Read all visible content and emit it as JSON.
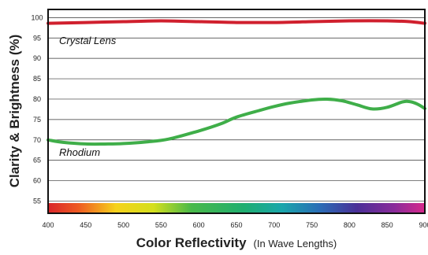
{
  "chart_data": {
    "type": "line",
    "title": "",
    "xlabel": "Color Reflectivity",
    "xlabel_note": "(In Wave Lengths)",
    "ylabel": "Clarity & Brightness (%)",
    "xlim": [
      400,
      900
    ],
    "ylim": [
      52,
      102
    ],
    "x_ticks": [
      400,
      450,
      500,
      550,
      600,
      650,
      700,
      750,
      800,
      850,
      900
    ],
    "y_ticks": [
      55,
      60,
      65,
      70,
      75,
      80,
      85,
      90,
      95,
      100
    ],
    "grid": "horizontal",
    "spectrum_bar": true,
    "series": [
      {
        "name": "Crystal Lens",
        "color": "#d0202e",
        "x": [
          400,
          450,
          500,
          550,
          600,
          650,
          700,
          750,
          800,
          850,
          880,
          900
        ],
        "y": [
          98.6,
          98.8,
          99.0,
          99.2,
          99.0,
          98.8,
          98.8,
          99.0,
          99.2,
          99.2,
          99.0,
          98.6
        ]
      },
      {
        "name": "Rhodium",
        "color": "#3fae49",
        "x": [
          400,
          420,
          450,
          480,
          500,
          530,
          560,
          600,
          630,
          650,
          680,
          700,
          720,
          750,
          770,
          790,
          810,
          830,
          850,
          870,
          880,
          890,
          900
        ],
        "y": [
          70,
          69.4,
          69.0,
          69.0,
          69.1,
          69.5,
          70.2,
          72.2,
          74.0,
          75.6,
          77.2,
          78.2,
          79.0,
          79.8,
          80.0,
          79.6,
          78.6,
          77.6,
          78.0,
          79.3,
          79.4,
          78.8,
          77.7
        ]
      }
    ]
  }
}
